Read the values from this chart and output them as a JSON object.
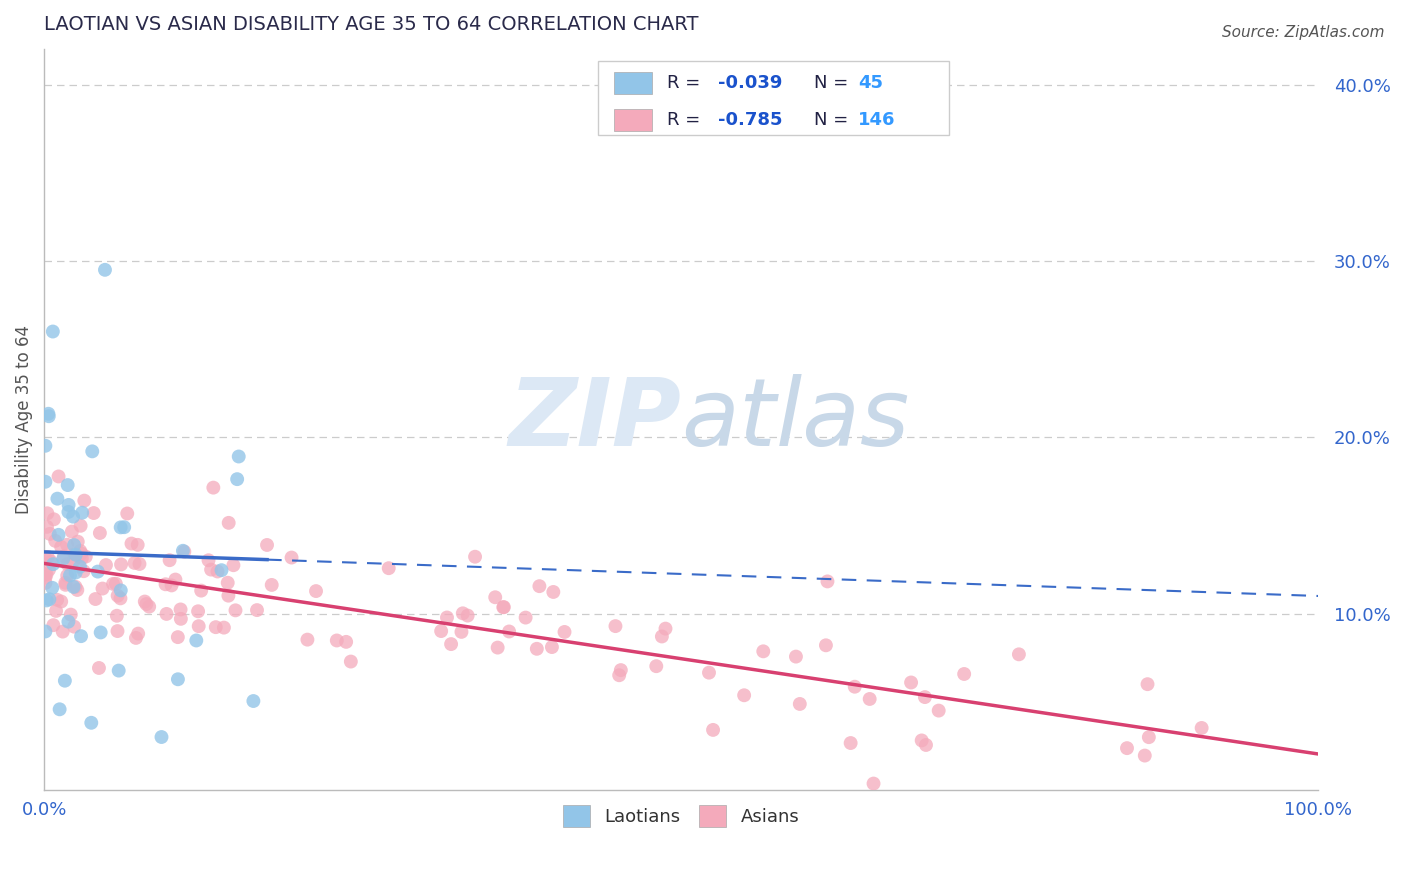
{
  "title": "LAOTIAN VS ASIAN DISABILITY AGE 35 TO 64 CORRELATION CHART",
  "source": "Source: ZipAtlas.com",
  "ylabel": "Disability Age 35 to 64",
  "xlim": [
    0.0,
    1.0
  ],
  "ylim": [
    0.0,
    0.42
  ],
  "laotian_R": -0.039,
  "laotian_N": 45,
  "asian_R": -0.785,
  "asian_N": 146,
  "blue_dot_color": "#92C5E8",
  "pink_dot_color": "#F4AABB",
  "blue_line_color": "#3A6BC8",
  "pink_line_color": "#D84070",
  "background_color": "#ffffff",
  "grid_color": "#cccccc",
  "title_color": "#2a2a4a",
  "axis_label_color": "#3366cc",
  "ylabel_color": "#555555",
  "watermark_color": "#dce8f5",
  "source_color": "#555555",
  "legend_R_dark_color": "#222244",
  "legend_R_blue_color": "#1a52cc",
  "legend_N_blue_color": "#3399ff"
}
